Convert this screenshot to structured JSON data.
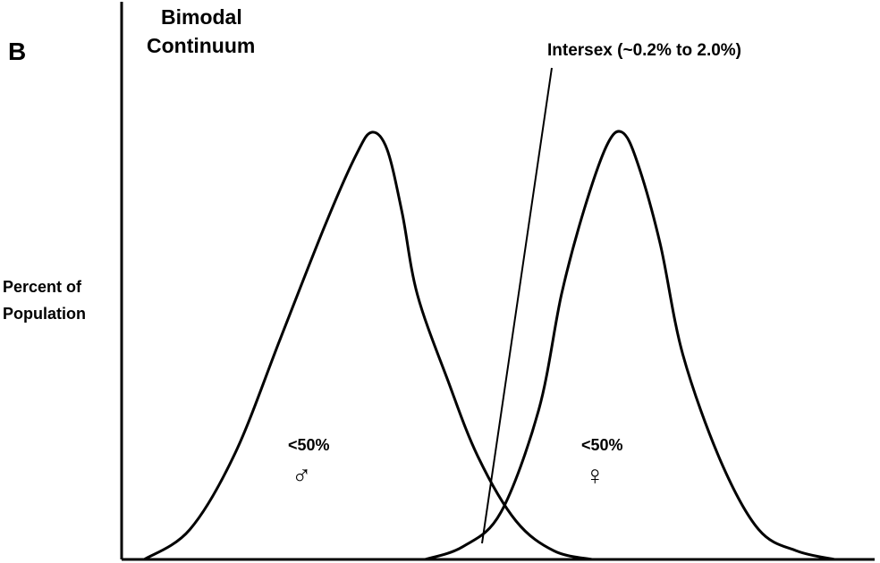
{
  "panel_letter": "B",
  "chart_data": {
    "type": "line",
    "title": [
      "Bimodal",
      "Continuum"
    ],
    "xlabel": "",
    "ylabel": [
      "Percent of",
      "Population"
    ],
    "xlim": [
      0,
      100
    ],
    "ylim": [
      0,
      100
    ],
    "grid": false,
    "series": [
      {
        "symbol": "♂",
        "label": "<50%",
        "x": [
          3,
          9,
          15,
          21,
          27,
          31,
          33,
          35,
          37,
          39,
          43,
          47,
          52,
          57,
          62
        ],
        "y": [
          0,
          7,
          25,
          52,
          79,
          95,
          100,
          96,
          81,
          62,
          42,
          24,
          9,
          2,
          0
        ]
      },
      {
        "symbol": "♀",
        "label": "<50%",
        "x": [
          40,
          45,
          50,
          55,
          58,
          61,
          64,
          66,
          68,
          71,
          74,
          79,
          84,
          89,
          94
        ],
        "y": [
          0,
          3,
          11,
          35,
          62,
          82,
          97,
          100,
          93,
          74,
          48,
          23,
          7,
          2,
          0
        ]
      }
    ],
    "annotations": [
      {
        "text": "Intersex (~0.2%  to  2.0%)"
      }
    ]
  }
}
